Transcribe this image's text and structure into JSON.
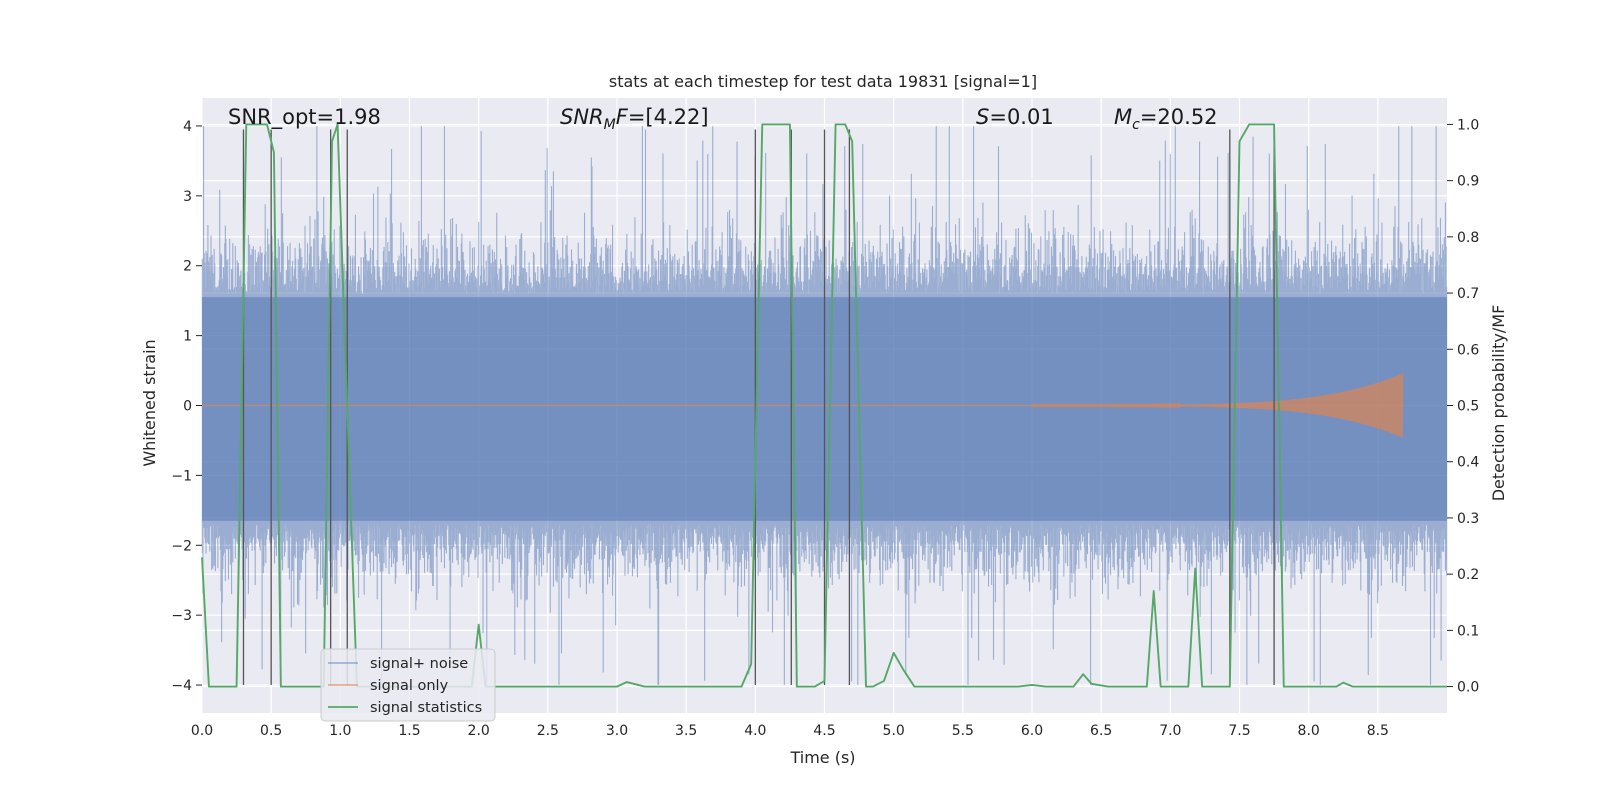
{
  "chart_data": {
    "type": "line",
    "title": "stats at each timestep for test data 19831 [signal=1]",
    "xlabel": "Time (s)",
    "ylabel_left": "Whitened strain",
    "ylabel_right": "Detection probability/MF",
    "xlim": [
      0,
      9.0
    ],
    "ylim_left": [
      -4.4,
      4.4
    ],
    "ylim_right": [
      -0.047,
      1.047
    ],
    "xticks": [
      0.0,
      0.5,
      1.0,
      1.5,
      2.0,
      2.5,
      3.0,
      3.5,
      4.0,
      4.5,
      5.0,
      5.5,
      6.0,
      6.5,
      7.0,
      7.5,
      8.0,
      8.5
    ],
    "xtick_labels": [
      "0.0",
      "0.5",
      "1.0",
      "1.5",
      "2.0",
      "2.5",
      "3.0",
      "3.5",
      "4.0",
      "4.5",
      "5.0",
      "5.5",
      "6.0",
      "6.5",
      "7.0",
      "7.5",
      "8.0",
      "8.5"
    ],
    "yticks_left": [
      4,
      3,
      2,
      1,
      0,
      -1,
      -2,
      -3,
      -4
    ],
    "ytick_labels_left": [
      "4",
      "3",
      "2",
      "1",
      "0",
      "−1",
      "−2",
      "−3",
      "−4"
    ],
    "yticks_right": [
      1.0,
      0.9,
      0.8,
      0.7,
      0.6,
      0.5,
      0.4,
      0.3,
      0.2,
      0.1,
      0.0
    ],
    "ytick_labels_right": [
      "1.0",
      "0.9",
      "0.8",
      "0.7",
      "0.6",
      "0.5",
      "0.4",
      "0.3",
      "0.2",
      "0.1",
      "0.0"
    ],
    "annotations": {
      "snr_opt": "SNR_opt=1.98",
      "snr_mf": "=[4.22]",
      "s_stat": "=0.01",
      "mc": "=20.52"
    },
    "legend": [
      "signal+ noise",
      "signal only",
      "signal statistics"
    ],
    "colors": {
      "noise": "#4c72b0",
      "signal": "#dd8452",
      "stats": "#55a868",
      "vlines": "#555555",
      "background": "#eaeaf2",
      "grid": "#ffffff"
    },
    "noise_envelope": {
      "upper_typical": 1.6,
      "lower_typical": -1.7,
      "upper_peak": 4.0,
      "lower_peak": -4.0
    },
    "signal_chirp": {
      "t_start": 6.0,
      "t_end": 8.68,
      "max_amplitude": 0.45
    },
    "vertical_lines": [
      0.3,
      0.5,
      0.93,
      1.05,
      4.0,
      4.26,
      4.5,
      4.68,
      7.43,
      7.75
    ],
    "vertical_line_range": [
      -4.0,
      3.95
    ],
    "stats_series": {
      "t": [
        0.0,
        0.05,
        0.15,
        0.25,
        0.32,
        0.37,
        0.47,
        0.52,
        0.57,
        0.62,
        0.88,
        0.94,
        0.98,
        1.07,
        1.12,
        1.7,
        1.9,
        1.95,
        2.0,
        2.05,
        2.1,
        2.6,
        3.0,
        3.07,
        3.2,
        3.9,
        3.97,
        4.05,
        4.25,
        4.3,
        4.43,
        4.5,
        4.58,
        4.65,
        4.7,
        4.8,
        4.85,
        4.93,
        5.0,
        5.07,
        5.15,
        5.9,
        6.0,
        6.1,
        6.3,
        6.37,
        6.43,
        6.55,
        6.83,
        6.88,
        6.93,
        7.05,
        7.13,
        7.18,
        7.23,
        7.37,
        7.43,
        7.5,
        7.57,
        7.75,
        7.82,
        7.87,
        7.95,
        8.2,
        8.25,
        8.32,
        9.0
      ],
      "p": [
        0.23,
        0.0,
        0.0,
        0.0,
        1.0,
        1.0,
        1.0,
        0.95,
        0.0,
        0.0,
        0.0,
        0.97,
        1.0,
        0.35,
        0.0,
        0.0,
        0.0,
        0.0,
        0.11,
        0.0,
        0.0,
        0.0,
        0.0,
        0.008,
        0.0,
        0.0,
        0.04,
        1.0,
        1.0,
        0.0,
        0.0,
        0.01,
        1.0,
        1.0,
        0.97,
        0.0,
        0.0,
        0.01,
        0.06,
        0.03,
        0.0,
        0.0,
        0.003,
        0.0,
        0.0,
        0.022,
        0.005,
        0.0,
        0.0,
        0.17,
        0.0,
        0.0,
        0.0,
        0.21,
        0.0,
        0.0,
        0.0,
        0.97,
        1.0,
        1.0,
        0.0,
        0.0,
        0.0,
        0.0,
        0.007,
        0.0,
        0.0
      ]
    }
  }
}
